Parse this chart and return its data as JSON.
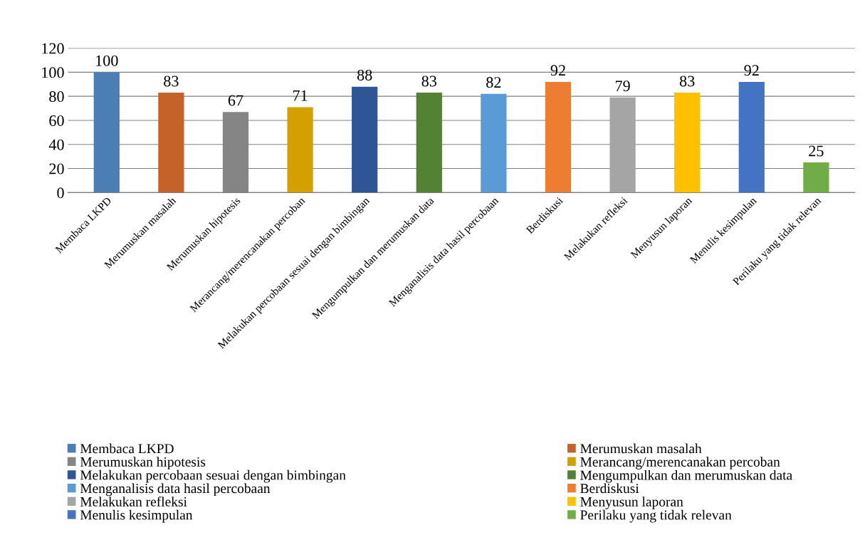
{
  "chart_data": {
    "type": "bar",
    "categories": [
      "Membaca LKPD",
      "Merumuskan masalah",
      "Merumuskan hipotesis",
      "Merancang/merencanakan percoban",
      "Melakukan percobaan sesuai dengan bimbingan",
      "Mengumpulkan dan merumuskan data",
      "Menganalisis data hasil percobaan",
      "Berdiskusi",
      "Melakukan refleksi",
      "Menyusun laporan",
      "Menulis kesimpulan",
      "Perilaku yang tidak relevan"
    ],
    "series": [
      {
        "name": "Membaca LKPD",
        "color": "#4a7eb5",
        "values": [
          100,
          null,
          null,
          null,
          null,
          null,
          null,
          null,
          null,
          null,
          null,
          null
        ]
      },
      {
        "name": "Merumuskan masalah",
        "color": "#c5622a",
        "values": [
          null,
          83,
          null,
          null,
          null,
          null,
          null,
          null,
          null,
          null,
          null,
          null
        ]
      },
      {
        "name": "Merumuskan hipotesis",
        "color": "#858585",
        "values": [
          null,
          null,
          67,
          null,
          null,
          null,
          null,
          null,
          null,
          null,
          null,
          null
        ]
      },
      {
        "name": "Merancang/merencanakan percoban",
        "color": "#d4a000",
        "values": [
          null,
          null,
          null,
          71,
          null,
          null,
          null,
          null,
          null,
          null,
          null,
          null
        ]
      },
      {
        "name": "Melakukan percobaan sesuai dengan bimbingan",
        "color": "#2f5597",
        "values": [
          null,
          null,
          null,
          null,
          88,
          null,
          null,
          null,
          null,
          null,
          null,
          null
        ]
      },
      {
        "name": "Mengumpulkan dan merumuskan data",
        "color": "#548235",
        "values": [
          null,
          null,
          null,
          null,
          null,
          83,
          null,
          null,
          null,
          null,
          null,
          null
        ]
      },
      {
        "name": "Menganalisis data hasil percobaan",
        "color": "#5b9bd5",
        "values": [
          null,
          null,
          null,
          null,
          null,
          null,
          82,
          null,
          null,
          null,
          null,
          null
        ]
      },
      {
        "name": "Berdiskusi",
        "color": "#ed7d31",
        "values": [
          null,
          null,
          null,
          null,
          null,
          null,
          null,
          92,
          null,
          null,
          null,
          null
        ]
      },
      {
        "name": "Melakukan refleksi",
        "color": "#a5a5a5",
        "values": [
          null,
          null,
          null,
          null,
          null,
          null,
          null,
          null,
          79,
          null,
          null,
          null
        ]
      },
      {
        "name": "Menyusun laporan",
        "color": "#ffc000",
        "values": [
          null,
          null,
          null,
          null,
          null,
          null,
          null,
          null,
          null,
          83,
          null,
          null
        ]
      },
      {
        "name": "Menulis kesimpulan",
        "color": "#4472c4",
        "values": [
          null,
          null,
          null,
          null,
          null,
          null,
          null,
          null,
          null,
          null,
          92,
          null
        ]
      },
      {
        "name": "Perilaku yang tidak relevan",
        "color": "#70ad47",
        "values": [
          null,
          null,
          null,
          null,
          null,
          null,
          null,
          null,
          null,
          null,
          null,
          25
        ]
      }
    ],
    "ylim": [
      0,
      120
    ],
    "yticks": [
      0,
      20,
      40,
      60,
      80,
      100,
      120
    ],
    "grid": "y",
    "data_labels": true,
    "legend": "bottom"
  }
}
